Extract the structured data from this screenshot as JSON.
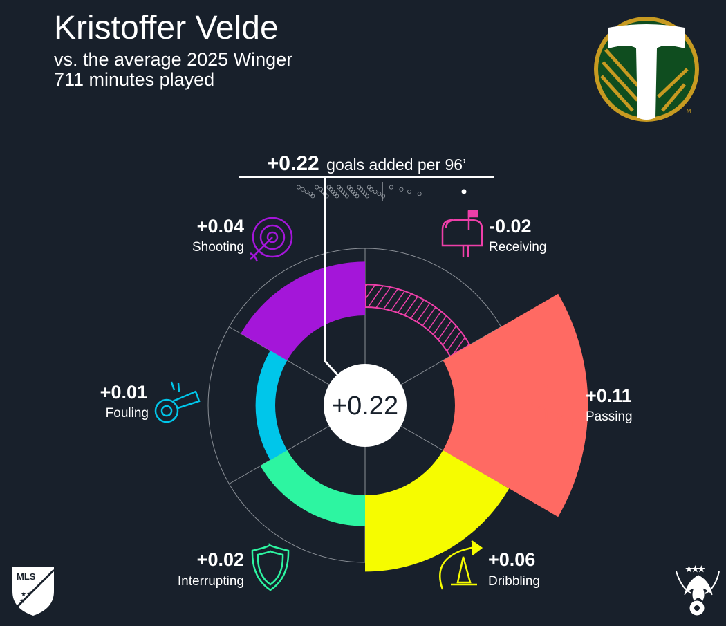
{
  "header": {
    "player_name": "Kristoffer Velde",
    "comparison": "vs. the average 2025 Winger",
    "minutes": "711 minutes played"
  },
  "total": {
    "value_label": "+0.22",
    "caption": "goals added per 96’"
  },
  "colors": {
    "background": "#18202b",
    "ring_lines": "#8a8f96",
    "text": "#ffffff"
  },
  "chart_data": {
    "type": "radial-bar",
    "total": 0.22,
    "unit": "goals added per 96’",
    "categories": [
      "Receiving",
      "Passing",
      "Dribbling",
      "Interrupting",
      "Fouling",
      "Shooting"
    ],
    "values": [
      -0.02,
      0.11,
      0.06,
      0.02,
      0.01,
      0.04
    ],
    "labels": [
      "-0.02",
      "+0.11",
      "+0.06",
      "+0.02",
      "+0.01",
      "+0.04"
    ],
    "colors": [
      "#ee3fa9",
      "#ff6a63",
      "#f6fc00",
      "#2df5a1",
      "#00c6ea",
      "#a416d9"
    ],
    "icons": [
      "mailbox-icon",
      "cleat-icon",
      "cone-icon",
      "shield-icon",
      "whistle-icon",
      "target-icon"
    ],
    "distribution": [
      -0.33,
      -0.31,
      -0.29,
      -0.27,
      -0.26,
      -0.24,
      -0.22,
      -0.21,
      -0.2,
      -0.19,
      -0.18,
      -0.17,
      -0.16,
      -0.15,
      -0.14,
      -0.13,
      -0.12,
      -0.11,
      -0.1,
      -0.09,
      -0.08,
      -0.07,
      -0.06,
      -0.05,
      -0.04,
      -0.03,
      -0.02,
      -0.01,
      0.0,
      0.01,
      0.02,
      0.03,
      0.05,
      0.07,
      0.09,
      0.13,
      0.18,
      0.22,
      0.27
    ]
  }
}
